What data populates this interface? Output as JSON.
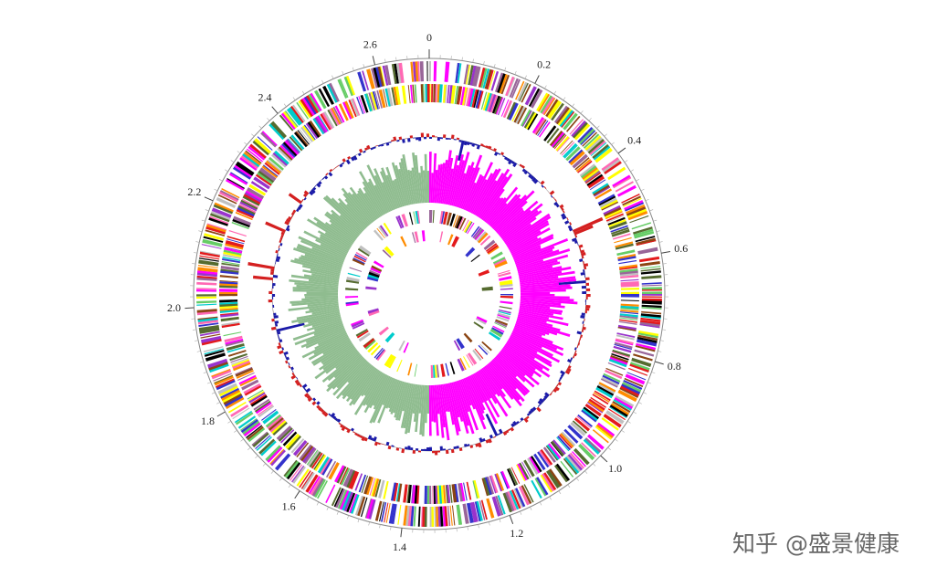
{
  "chart_data": {
    "type": "circular-genome",
    "xlim": [
      0,
      2.7
    ],
    "xticks": [
      {
        "value": 0,
        "label": "0"
      },
      {
        "value": 0.2,
        "label": "0.2"
      },
      {
        "value": 0.4,
        "label": "0.4"
      },
      {
        "value": 0.6,
        "label": "0.6"
      },
      {
        "value": 0.8,
        "label": "0.8"
      },
      {
        "value": 1.0,
        "label": "1.0"
      },
      {
        "value": 1.2,
        "label": "1.2"
      },
      {
        "value": 1.4,
        "label": "1.4"
      },
      {
        "value": 1.6,
        "label": "1.6"
      },
      {
        "value": 1.8,
        "label": "1.8"
      },
      {
        "value": 2.0,
        "label": "2.0"
      },
      {
        "value": 2.2,
        "label": "2.2"
      },
      {
        "value": 2.4,
        "label": "2.4"
      },
      {
        "value": 2.6,
        "label": "2.6"
      }
    ],
    "watermark": "知乎 @盛景健康"
  }
}
